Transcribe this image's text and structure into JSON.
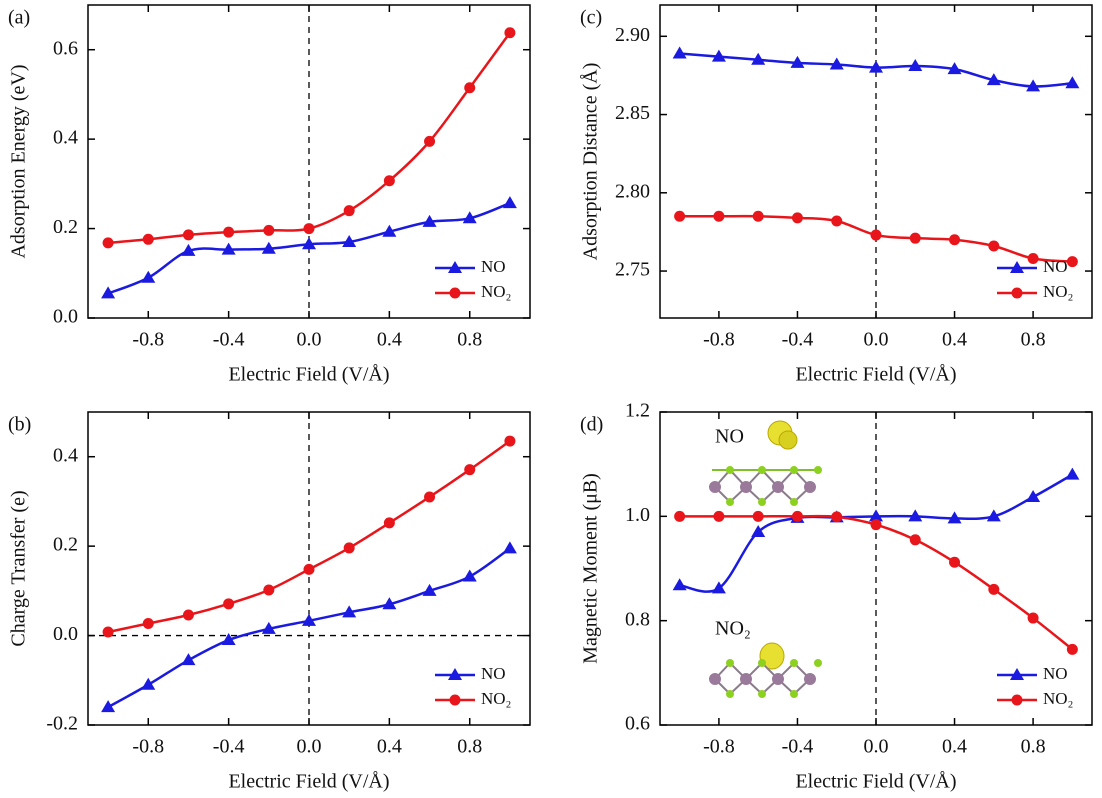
{
  "chart_data": [
    {
      "type": "line",
      "panel_label": "(a)",
      "xlabel": "Electric Field (V/Å)",
      "ylabel": "Adsorption Energy (eV)",
      "x": [
        -1,
        -0.8,
        -0.6,
        -0.4,
        -0.2,
        0,
        0.2,
        0.4,
        0.6,
        0.8,
        1
      ],
      "series": [
        {
          "name": "NO",
          "color": "#1a1ae0",
          "marker": "triangle",
          "values": [
            0.055,
            0.09,
            0.15,
            0.153,
            0.155,
            0.165,
            0.17,
            0.193,
            0.215,
            0.223,
            0.257
          ]
        },
        {
          "name": "NO₂",
          "color": "#e8161b",
          "marker": "circle",
          "values": [
            0.168,
            0.176,
            0.186,
            0.192,
            0.196,
            0.2,
            0.24,
            0.307,
            0.395,
            0.515,
            0.638
          ]
        }
      ],
      "xlim": [
        -1.1,
        1.1
      ],
      "xticks": [
        -0.8,
        -0.4,
        {
          "value": 0,
          "label": "0.0"
        },
        0.4,
        0.8
      ],
      "ylim": [
        0,
        0.7
      ],
      "yticks": [
        {
          "value": 0,
          "label": "0.0"
        },
        0.2,
        0.4,
        0.6
      ],
      "vlines": [
        0
      ],
      "hlines": [],
      "legend": "lower right"
    },
    {
      "type": "line",
      "panel_label": "(b)",
      "xlabel": "Electric Field (V/Å)",
      "ylabel": "Charge Transfer (e)",
      "x": [
        -1,
        -0.8,
        -0.6,
        -0.4,
        -0.2,
        0,
        0.2,
        0.4,
        0.6,
        0.8,
        1
      ],
      "series": [
        {
          "name": "NO",
          "color": "#1a1ae0",
          "marker": "triangle",
          "values": [
            -0.16,
            -0.11,
            -0.055,
            -0.01,
            0.015,
            0.033,
            0.052,
            0.07,
            0.1,
            0.132,
            0.195
          ]
        },
        {
          "name": "NO₂",
          "color": "#e8161b",
          "marker": "circle",
          "values": [
            0.008,
            0.027,
            0.046,
            0.071,
            0.102,
            0.148,
            0.196,
            0.252,
            0.31,
            0.371,
            0.435
          ]
        }
      ],
      "xlim": [
        -1.1,
        1.1
      ],
      "xticks": [
        -0.8,
        -0.4,
        {
          "value": 0,
          "label": "0.0"
        },
        0.4,
        0.8
      ],
      "ylim": [
        -0.2,
        0.5
      ],
      "yticks": [
        -0.2,
        {
          "value": 0,
          "label": "0.0"
        },
        0.2,
        0.4
      ],
      "vlines": [
        0
      ],
      "hlines": [
        0
      ],
      "legend": "lower right"
    },
    {
      "type": "line",
      "panel_label": "(c)",
      "xlabel": "Electric Field (V/Å)",
      "ylabel": "Adsorption Distance (Å)",
      "x": [
        -1,
        -0.8,
        -0.6,
        -0.4,
        -0.2,
        0,
        0.2,
        0.4,
        0.6,
        0.8,
        1
      ],
      "series": [
        {
          "name": "NO",
          "color": "#1a1ae0",
          "marker": "triangle",
          "values": [
            2.889,
            2.887,
            2.885,
            2.883,
            2.882,
            2.88,
            2.881,
            2.879,
            2.872,
            2.868,
            2.87
          ]
        },
        {
          "name": "NO₂",
          "color": "#e8161b",
          "marker": "circle",
          "values": [
            2.785,
            2.785,
            2.785,
            2.784,
            2.782,
            2.773,
            2.771,
            2.77,
            2.766,
            2.758,
            2.756
          ]
        }
      ],
      "xlim": [
        -1.1,
        1.1
      ],
      "xticks": [
        -0.8,
        -0.4,
        {
          "value": 0,
          "label": "0.0"
        },
        0.4,
        0.8
      ],
      "ylim": [
        2.72,
        2.92
      ],
      "yticks": [
        2.75,
        {
          "value": 2.8,
          "label": "2.80"
        },
        2.85,
        {
          "value": 2.9,
          "label": "2.90"
        }
      ],
      "vlines": [
        0
      ],
      "hlines": [],
      "legend": "lower right"
    },
    {
      "type": "line",
      "panel_label": "(d)",
      "xlabel": "Electric Field (V/Å)",
      "ylabel": "Magnetic Moment (μB)",
      "x": [
        -1,
        -0.8,
        -0.6,
        -0.4,
        -0.2,
        0,
        0.2,
        0.4,
        0.6,
        0.8,
        1
      ],
      "series": [
        {
          "name": "NO",
          "color": "#1a1ae0",
          "marker": "triangle",
          "values": [
            0.868,
            0.862,
            0.97,
            0.997,
            0.998,
            1.0,
            1.0,
            0.996,
            1.0,
            1.037,
            1.08
          ]
        },
        {
          "name": "NO₂",
          "color": "#e8161b",
          "marker": "circle",
          "values": [
            1.0,
            1.0,
            1.0,
            1.0,
            0.999,
            0.984,
            0.955,
            0.912,
            0.86,
            0.805,
            0.745
          ]
        }
      ],
      "xlim": [
        -1.1,
        1.1
      ],
      "xticks": [
        -0.8,
        -0.4,
        {
          "value": 0,
          "label": "0.0"
        },
        0.4,
        0.8
      ],
      "ylim": [
        0.6,
        1.2
      ],
      "yticks": [
        0.6,
        0.8,
        {
          "value": 1,
          "label": "1.0"
        },
        1.2
      ],
      "vlines": [
        0
      ],
      "hlines": [],
      "legend": "lower right",
      "annotations": [
        "NO",
        "NO₂"
      ]
    }
  ]
}
